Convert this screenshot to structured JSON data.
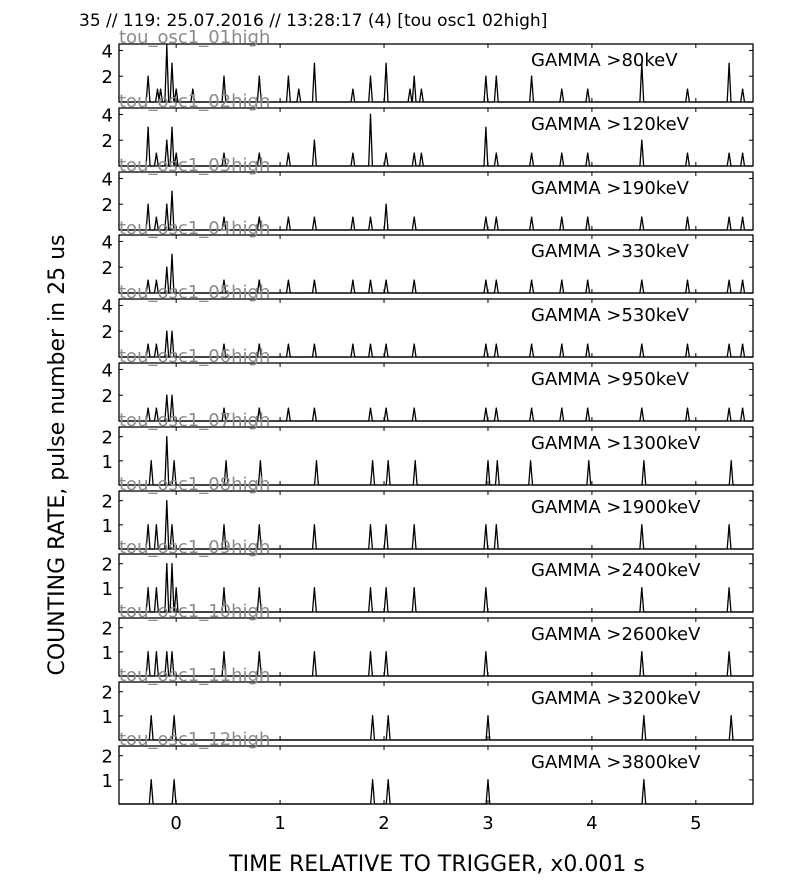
{
  "title": "35 // 119:   25.07.2016 // 13:28:17 (4)  [tou osc1 02high]",
  "ylabel": "COUNTING RATE,    pulse number in 25 us",
  "xlabel": "TIME RELATIVE TO TRIGGER,   x0.001 s",
  "chart_data": {
    "type": "line",
    "title": "35 // 119:   25.07.2016 // 13:28:17 (4)  [tou osc1 02high]",
    "xlabel": "TIME RELATIVE TO TRIGGER,   x0.001 s",
    "ylabel": "COUNTING RATE,    pulse number in 25 us",
    "xlim": [
      -0.55,
      5.55
    ],
    "x_ticks": [
      "0",
      "1",
      "2",
      "3",
      "4",
      "5"
    ],
    "x_tick_values": [
      0,
      1,
      2,
      3,
      4,
      5
    ],
    "panels": [
      {
        "channel": "tou_osc1_01high",
        "label": "GAMMA >80keV",
        "ylim": [
          0,
          4.5
        ],
        "yticks": [
          2,
          4
        ],
        "peaks": [
          [
            -0.27,
            2
          ],
          [
            -0.18,
            1
          ],
          [
            -0.15,
            1
          ],
          [
            -0.09,
            4.4
          ],
          [
            -0.04,
            3
          ],
          [
            0.0,
            1
          ],
          [
            0.16,
            1
          ],
          [
            0.46,
            2
          ],
          [
            0.8,
            2
          ],
          [
            1.08,
            2
          ],
          [
            1.18,
            1
          ],
          [
            1.33,
            3
          ],
          [
            1.7,
            1
          ],
          [
            1.87,
            2
          ],
          [
            2.02,
            3
          ],
          [
            2.25,
            1
          ],
          [
            2.29,
            2
          ],
          [
            2.36,
            1
          ],
          [
            2.98,
            2
          ],
          [
            3.08,
            2
          ],
          [
            3.42,
            2
          ],
          [
            3.71,
            1
          ],
          [
            3.96,
            1
          ],
          [
            4.48,
            3
          ],
          [
            4.92,
            1
          ],
          [
            5.32,
            3
          ],
          [
            5.45,
            1
          ]
        ]
      },
      {
        "channel": "tou_osc1_02high",
        "label": "GAMMA >120keV",
        "ylim": [
          0,
          4.5
        ],
        "yticks": [
          2,
          4
        ],
        "peaks": [
          [
            -0.27,
            3
          ],
          [
            -0.19,
            1
          ],
          [
            -0.09,
            2
          ],
          [
            -0.04,
            3
          ],
          [
            0.0,
            1
          ],
          [
            0.46,
            1
          ],
          [
            0.8,
            1
          ],
          [
            1.08,
            1
          ],
          [
            1.33,
            2
          ],
          [
            1.7,
            1
          ],
          [
            1.87,
            4
          ],
          [
            2.02,
            1
          ],
          [
            2.29,
            1
          ],
          [
            2.36,
            1
          ],
          [
            2.98,
            3
          ],
          [
            3.08,
            1
          ],
          [
            3.42,
            1
          ],
          [
            3.71,
            1
          ],
          [
            3.96,
            1
          ],
          [
            4.48,
            2
          ],
          [
            4.92,
            1
          ],
          [
            5.32,
            1
          ],
          [
            5.45,
            1
          ]
        ]
      },
      {
        "channel": "tou_osc1_03high",
        "label": "GAMMA >190keV",
        "ylim": [
          0,
          4.5
        ],
        "yticks": [
          2,
          4
        ],
        "peaks": [
          [
            -0.27,
            2
          ],
          [
            -0.19,
            1
          ],
          [
            -0.09,
            2
          ],
          [
            -0.04,
            3
          ],
          [
            0.46,
            1
          ],
          [
            0.8,
            1
          ],
          [
            1.08,
            1
          ],
          [
            1.33,
            1
          ],
          [
            1.7,
            1
          ],
          [
            1.87,
            1
          ],
          [
            2.02,
            2
          ],
          [
            2.29,
            1
          ],
          [
            2.98,
            1
          ],
          [
            3.08,
            1
          ],
          [
            3.42,
            1
          ],
          [
            3.71,
            1
          ],
          [
            3.96,
            1
          ],
          [
            4.48,
            1
          ],
          [
            4.92,
            1
          ],
          [
            5.32,
            1
          ],
          [
            5.45,
            1
          ]
        ]
      },
      {
        "channel": "tou_osc1_04high",
        "label": "GAMMA >330keV",
        "ylim": [
          0,
          4.5
        ],
        "yticks": [
          2,
          4
        ],
        "peaks": [
          [
            -0.27,
            1
          ],
          [
            -0.19,
            1
          ],
          [
            -0.09,
            2
          ],
          [
            -0.04,
            3
          ],
          [
            0.46,
            1
          ],
          [
            0.8,
            1
          ],
          [
            1.08,
            1
          ],
          [
            1.33,
            1
          ],
          [
            1.7,
            1
          ],
          [
            1.87,
            1
          ],
          [
            2.02,
            1
          ],
          [
            2.29,
            1
          ],
          [
            2.98,
            1
          ],
          [
            3.08,
            1
          ],
          [
            3.42,
            1
          ],
          [
            3.71,
            1
          ],
          [
            3.96,
            1
          ],
          [
            4.48,
            1
          ],
          [
            4.92,
            1
          ],
          [
            5.32,
            1
          ],
          [
            5.45,
            1
          ]
        ]
      },
      {
        "channel": "tou_osc1_05high",
        "label": "GAMMA >530keV",
        "ylim": [
          0,
          4.5
        ],
        "yticks": [
          2,
          4
        ],
        "peaks": [
          [
            -0.27,
            1
          ],
          [
            -0.19,
            1
          ],
          [
            -0.09,
            2
          ],
          [
            -0.04,
            2
          ],
          [
            0.46,
            1
          ],
          [
            0.8,
            1
          ],
          [
            1.08,
            1
          ],
          [
            1.33,
            1
          ],
          [
            1.7,
            1
          ],
          [
            1.87,
            1
          ],
          [
            2.02,
            1
          ],
          [
            2.29,
            1
          ],
          [
            2.98,
            1
          ],
          [
            3.08,
            1
          ],
          [
            3.42,
            1
          ],
          [
            3.71,
            1
          ],
          [
            3.96,
            1
          ],
          [
            4.48,
            1
          ],
          [
            4.92,
            1
          ],
          [
            5.32,
            1
          ],
          [
            5.45,
            1
          ]
        ]
      },
      {
        "channel": "tou_osc1_06high",
        "label": "GAMMA >950keV",
        "ylim": [
          0,
          4.5
        ],
        "yticks": [
          2,
          4
        ],
        "peaks": [
          [
            -0.27,
            1
          ],
          [
            -0.19,
            1
          ],
          [
            -0.09,
            2
          ],
          [
            -0.04,
            2
          ],
          [
            0.46,
            1
          ],
          [
            0.8,
            1
          ],
          [
            1.08,
            1
          ],
          [
            1.33,
            1
          ],
          [
            1.87,
            1
          ],
          [
            2.02,
            1
          ],
          [
            2.29,
            1
          ],
          [
            2.98,
            1
          ],
          [
            3.08,
            1
          ],
          [
            3.42,
            1
          ],
          [
            3.71,
            1
          ],
          [
            3.96,
            1
          ],
          [
            4.48,
            1
          ],
          [
            4.92,
            1
          ],
          [
            5.32,
            1
          ],
          [
            5.45,
            1
          ]
        ]
      },
      {
        "channel": "tou_osc1_07high",
        "label": "GAMMA >1300keV",
        "ylim": [
          0,
          2.4
        ],
        "yticks": [
          1,
          2
        ],
        "peaks": [
          [
            -0.24,
            1
          ],
          [
            -0.09,
            2
          ],
          [
            -0.02,
            1
          ],
          [
            0.48,
            1
          ],
          [
            0.81,
            1
          ],
          [
            1.35,
            1
          ],
          [
            1.89,
            1
          ],
          [
            2.04,
            1
          ],
          [
            2.3,
            1
          ],
          [
            3.0,
            1
          ],
          [
            3.09,
            1
          ],
          [
            3.41,
            1
          ],
          [
            3.97,
            1
          ],
          [
            4.5,
            1
          ],
          [
            5.34,
            1
          ]
        ]
      },
      {
        "channel": "tou_osc1_08high",
        "label": "GAMMA >1900keV",
        "ylim": [
          0,
          2.4
        ],
        "yticks": [
          1,
          2
        ],
        "peaks": [
          [
            -0.27,
            1
          ],
          [
            -0.19,
            1
          ],
          [
            -0.09,
            2
          ],
          [
            -0.04,
            1
          ],
          [
            0.46,
            1
          ],
          [
            0.8,
            1
          ],
          [
            1.33,
            1
          ],
          [
            1.87,
            1
          ],
          [
            2.02,
            1
          ],
          [
            2.29,
            1
          ],
          [
            2.98,
            1
          ],
          [
            3.08,
            1
          ],
          [
            4.48,
            1
          ],
          [
            5.32,
            1
          ]
        ]
      },
      {
        "channel": "tou_osc1_09high",
        "label": "GAMMA >2400keV",
        "ylim": [
          0,
          2.4
        ],
        "yticks": [
          1,
          2
        ],
        "peaks": [
          [
            -0.27,
            1
          ],
          [
            -0.19,
            1
          ],
          [
            -0.09,
            2
          ],
          [
            -0.04,
            2
          ],
          [
            0.0,
            1
          ],
          [
            0.46,
            1
          ],
          [
            0.8,
            1
          ],
          [
            1.33,
            1
          ],
          [
            1.87,
            1
          ],
          [
            2.02,
            1
          ],
          [
            2.29,
            1
          ],
          [
            2.98,
            1
          ],
          [
            4.48,
            1
          ],
          [
            5.32,
            1
          ]
        ]
      },
      {
        "channel": "tou_osc1_10high",
        "label": "GAMMA >2600keV",
        "ylim": [
          0,
          2.4
        ],
        "yticks": [
          1,
          2
        ],
        "peaks": [
          [
            -0.27,
            1
          ],
          [
            -0.19,
            1
          ],
          [
            -0.09,
            1
          ],
          [
            -0.04,
            1
          ],
          [
            0.46,
            1
          ],
          [
            0.8,
            1
          ],
          [
            1.33,
            1
          ],
          [
            1.87,
            1
          ],
          [
            2.02,
            1
          ],
          [
            2.98,
            1
          ],
          [
            4.48,
            1
          ],
          [
            5.32,
            1
          ]
        ]
      },
      {
        "channel": "tou_osc1_11high",
        "label": "GAMMA >3200keV",
        "ylim": [
          0,
          2.4
        ],
        "yticks": [
          1,
          2
        ],
        "peaks": [
          [
            -0.24,
            1
          ],
          [
            -0.02,
            1
          ],
          [
            1.89,
            1
          ],
          [
            2.04,
            1
          ],
          [
            3.0,
            1
          ],
          [
            4.5,
            1
          ],
          [
            5.34,
            1
          ]
        ]
      },
      {
        "channel": "tou_osc1_12high",
        "label": "GAMMA >3800keV",
        "ylim": [
          0,
          2.4
        ],
        "yticks": [
          1,
          2
        ],
        "peaks": [
          [
            -0.24,
            1
          ],
          [
            -0.02,
            1
          ],
          [
            1.89,
            1
          ],
          [
            2.04,
            1
          ],
          [
            3.0,
            1
          ],
          [
            4.5,
            1
          ]
        ]
      }
    ]
  }
}
